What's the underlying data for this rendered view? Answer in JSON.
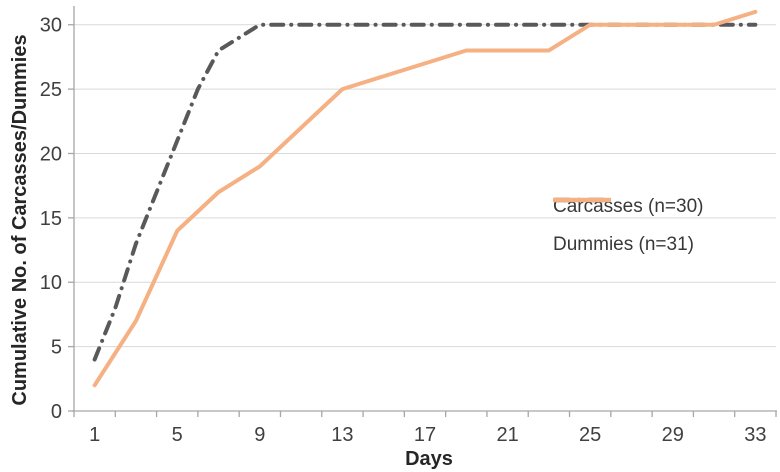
{
  "chart_data": {
    "type": "line",
    "title": "",
    "xlabel": "Days",
    "ylabel": "Cumulative No. of Carcasses/Dummies",
    "xlim": [
      0,
      34
    ],
    "ylim": [
      0,
      31.3
    ],
    "x_tick_labels": [
      1,
      5,
      9,
      13,
      17,
      21,
      25,
      29,
      33
    ],
    "x_minor_tick_step": 2,
    "y_ticks": [
      0,
      5,
      10,
      15,
      20,
      25,
      30
    ],
    "grid": "horizontal-only",
    "legend_position": "middle-right",
    "series": [
      {
        "name": "carcasses",
        "label": "Carcasses (n=30)",
        "color": "#595959",
        "line_style": "dash-dot",
        "points": [
          [
            1,
            4
          ],
          [
            2,
            8
          ],
          [
            3,
            13
          ],
          [
            4,
            17
          ],
          [
            5,
            21
          ],
          [
            6,
            25
          ],
          [
            7,
            28
          ],
          [
            8,
            29
          ],
          [
            9,
            30
          ],
          [
            13,
            30
          ],
          [
            17,
            30
          ],
          [
            21,
            30
          ],
          [
            25,
            30
          ],
          [
            29,
            30
          ],
          [
            33,
            30
          ]
        ]
      },
      {
        "name": "dummies",
        "label": "Dummies (n=31)",
        "color": "#f5b183",
        "line_style": "solid",
        "points": [
          [
            1,
            2
          ],
          [
            3,
            7
          ],
          [
            5,
            14
          ],
          [
            7,
            17
          ],
          [
            9,
            19
          ],
          [
            11,
            22
          ],
          [
            13,
            25
          ],
          [
            15,
            26
          ],
          [
            17,
            27
          ],
          [
            19,
            28
          ],
          [
            21,
            28
          ],
          [
            23,
            28
          ],
          [
            25,
            30
          ],
          [
            27,
            30
          ],
          [
            29,
            30
          ],
          [
            31,
            30
          ],
          [
            33,
            31
          ]
        ]
      }
    ],
    "colors": {
      "gridline": "#d9d9d9",
      "axis": "#a6a6a6",
      "tick_label": "#404040",
      "axis_title": "#262626",
      "legend_text": "#383838"
    }
  }
}
